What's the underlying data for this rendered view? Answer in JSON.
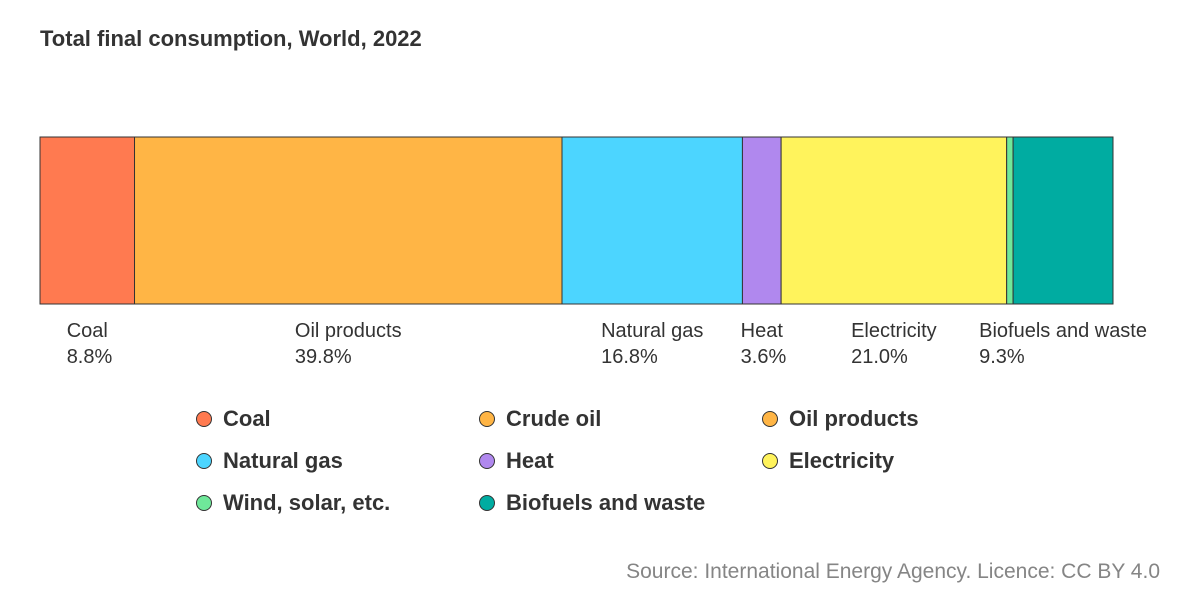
{
  "chart_data": {
    "type": "bar",
    "title": "Total final consumption, World, 2022",
    "categories": [
      "Coal",
      "Oil products",
      "Natural gas",
      "Heat",
      "Electricity",
      "Wind, solar, etc.",
      "Biofuels and waste"
    ],
    "values": [
      8.8,
      39.8,
      16.8,
      3.6,
      21.0,
      0.6,
      9.3
    ],
    "value_unit": "%",
    "value_labels": {
      "Coal": "8.8%",
      "Oil products": "39.8%",
      "Natural gas": "16.8%",
      "Heat": "3.6%",
      "Electricity": "21.0%",
      "Biofuels and waste": "9.3%"
    },
    "colors": {
      "Coal": "#ff7a50",
      "Crude oil": "#ffb545",
      "Oil products": "#ffb545",
      "Natural gas": "#4cd5ff",
      "Heat": "#b088ee",
      "Electricity": "#fff35c",
      "Wind, solar, etc.": "#6fe89a",
      "Biofuels and waste": "#00aca1"
    },
    "legend": [
      "Coal",
      "Crude oil",
      "Oil products",
      "Natural gas",
      "Heat",
      "Electricity",
      "Wind, solar, etc.",
      "Biofuels and waste"
    ],
    "legend_placement": "bottom",
    "grid": false
  },
  "source": "Source: International Energy Agency. Licence: CC BY 4.0"
}
